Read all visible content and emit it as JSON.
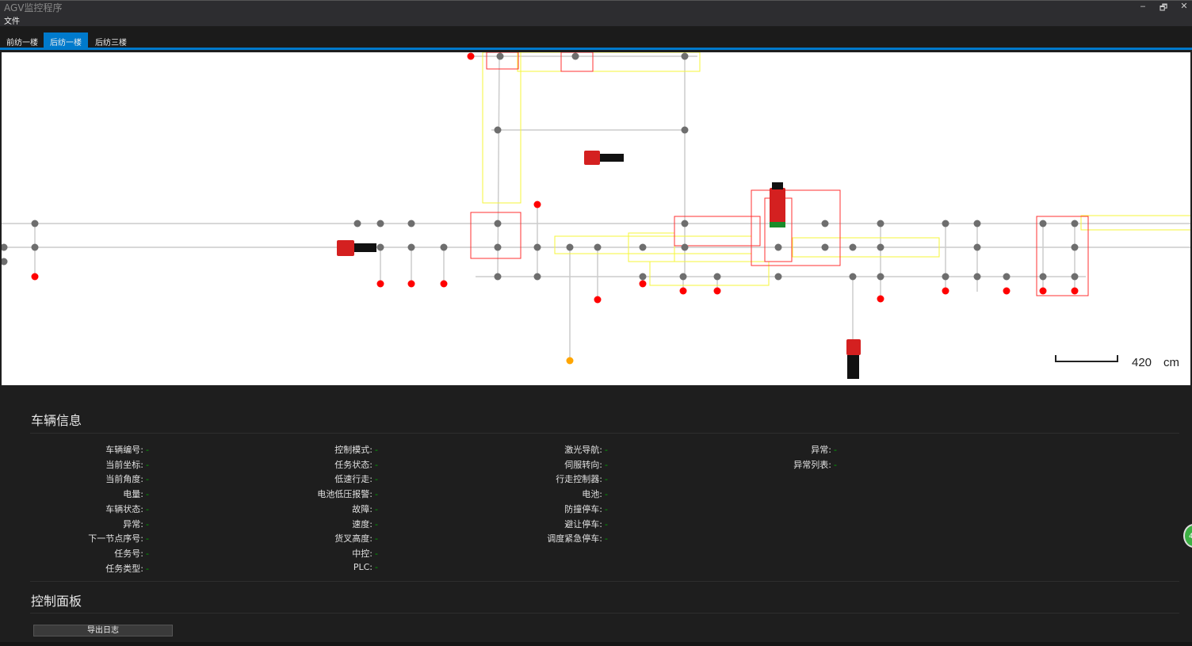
{
  "window": {
    "title": "AGV监控程序",
    "minimize": "‒",
    "restore": "🗗",
    "close": "✕"
  },
  "menu": {
    "file": "文件"
  },
  "tabs": [
    {
      "label": "前纺一楼",
      "active": false
    },
    {
      "label": "后纺一楼",
      "active": true
    },
    {
      "label": "后纺三楼",
      "active": false
    }
  ],
  "map": {
    "scale": {
      "value": "420",
      "unit": "cm"
    },
    "colors": {
      "node": "#6e6e6e",
      "node_alert": "#ff0000",
      "node_warn": "#ffa500",
      "path": "#cccccc",
      "zone_red": "#ff3030",
      "zone_yellow": "#f5f53a",
      "agv": "#d42020"
    }
  },
  "vehicle_info": {
    "title": "车辆信息",
    "columns": [
      [
        {
          "label": "车辆编号:",
          "value": "-"
        },
        {
          "label": "当前坐标:",
          "value": "-"
        },
        {
          "label": "当前角度:",
          "value": "-"
        },
        {
          "label": "电量:",
          "value": "-"
        },
        {
          "label": "车辆状态:",
          "value": "-"
        },
        {
          "label": "异常:",
          "value": "-"
        },
        {
          "label": "下一节点序号:",
          "value": "-"
        },
        {
          "label": "任务号:",
          "value": "-"
        },
        {
          "label": "任务类型:",
          "value": "-"
        }
      ],
      [
        {
          "label": "控制模式:",
          "value": "-"
        },
        {
          "label": "任务状态:",
          "value": "-"
        },
        {
          "label": "低速行走:",
          "value": "-"
        },
        {
          "label": "电池低压报警:",
          "value": "-"
        },
        {
          "label": "故障:",
          "value": "-"
        },
        {
          "label": "速度:",
          "value": "-"
        },
        {
          "label": "货叉高度:",
          "value": "-"
        },
        {
          "label": "中控:",
          "value": "-"
        },
        {
          "label": "PLC:",
          "value": "-"
        }
      ],
      [
        {
          "label": "激光导航:",
          "value": "-"
        },
        {
          "label": "伺服转向:",
          "value": "-"
        },
        {
          "label": "行走控制器:",
          "value": "-"
        },
        {
          "label": "电池:",
          "value": "-"
        },
        {
          "label": "防撞停车:",
          "value": "-"
        },
        {
          "label": "避让停车:",
          "value": "-"
        },
        {
          "label": "调度紧急停车:",
          "value": "-"
        }
      ],
      [
        {
          "label": "异常:",
          "value": "-"
        },
        {
          "label": "异常列表:",
          "value": "-"
        }
      ]
    ]
  },
  "control_panel": {
    "title": "控制面板",
    "export_log": "导出日志"
  },
  "badge": {
    "text": "4"
  }
}
